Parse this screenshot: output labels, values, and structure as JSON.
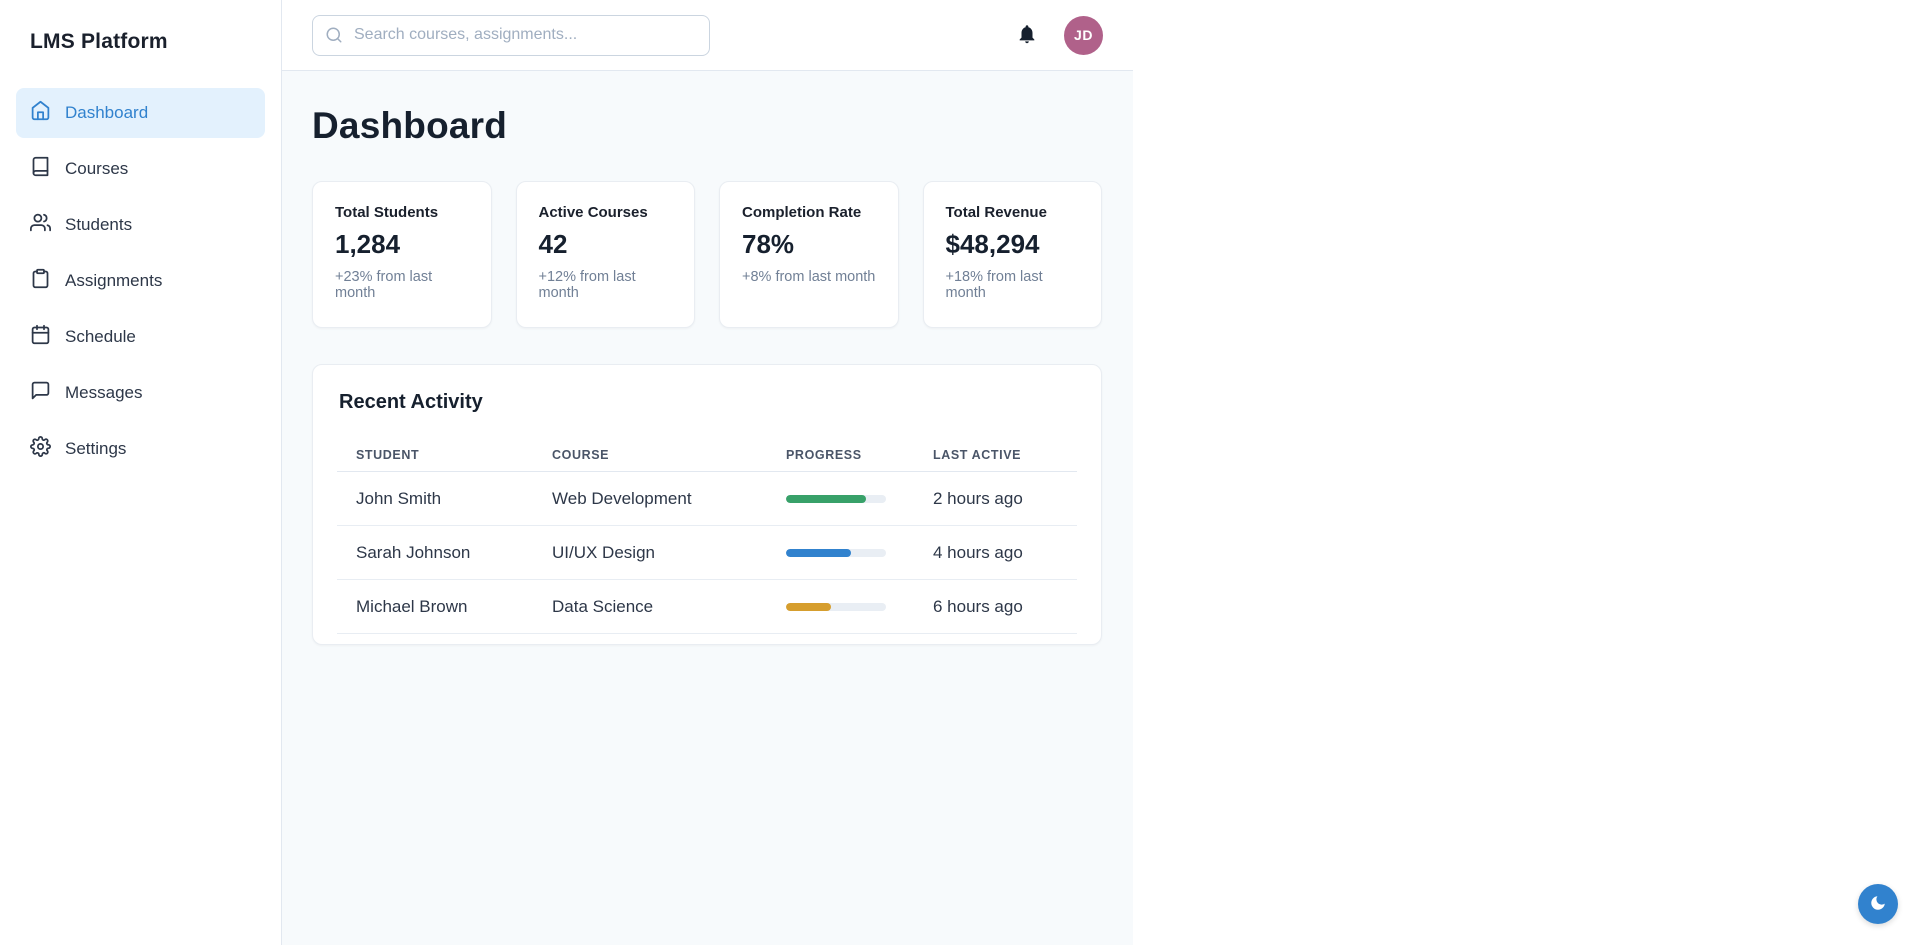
{
  "app": {
    "title": "LMS Platform"
  },
  "sidebar": {
    "items": [
      {
        "label": "Dashboard",
        "icon": "home-icon",
        "active": true
      },
      {
        "label": "Courses",
        "icon": "book-icon",
        "active": false
      },
      {
        "label": "Students",
        "icon": "users-icon",
        "active": false
      },
      {
        "label": "Assignments",
        "icon": "clipboard-icon",
        "active": false
      },
      {
        "label": "Schedule",
        "icon": "calendar-icon",
        "active": false
      },
      {
        "label": "Messages",
        "icon": "message-icon",
        "active": false
      },
      {
        "label": "Settings",
        "icon": "gear-icon",
        "active": false
      }
    ]
  },
  "header": {
    "search_placeholder": "Search courses, assignments...",
    "avatar_initials": "JD"
  },
  "page": {
    "title": "Dashboard"
  },
  "stats": [
    {
      "label": "Total Students",
      "value": "1,284",
      "change": "+23% from last month"
    },
    {
      "label": "Active Courses",
      "value": "42",
      "change": "+12% from last month"
    },
    {
      "label": "Completion Rate",
      "value": "78%",
      "change": "+8% from last month"
    },
    {
      "label": "Total Revenue",
      "value": "$48,294",
      "change": "+18% from last month"
    }
  ],
  "recent_activity": {
    "title": "Recent Activity",
    "columns": [
      "STUDENT",
      "COURSE",
      "PROGRESS",
      "LAST ACTIVE"
    ],
    "rows": [
      {
        "student": "John Smith",
        "course": "Web Development",
        "progress_percent": 80,
        "progress_color": "#38a169",
        "last_active": "2 hours ago"
      },
      {
        "student": "Sarah Johnson",
        "course": "UI/UX Design",
        "progress_percent": 65,
        "progress_color": "#3182ce",
        "last_active": "4 hours ago"
      },
      {
        "student": "Michael Brown",
        "course": "Data Science",
        "progress_percent": 45,
        "progress_color": "#d69e2e",
        "last_active": "6 hours ago"
      }
    ]
  },
  "theme_toggle": {
    "icon": "moon-icon",
    "background": "#3182ce"
  },
  "colors": {
    "accent": "#3182ce",
    "active_nav_bg": "#e3f1fd",
    "content_bg": "#f7fafc",
    "avatar_bg": "#b0618a",
    "progress_track": "#e9eef4",
    "progress_green": "#38a169",
    "progress_blue": "#3182ce",
    "progress_orange": "#d69e2e"
  }
}
